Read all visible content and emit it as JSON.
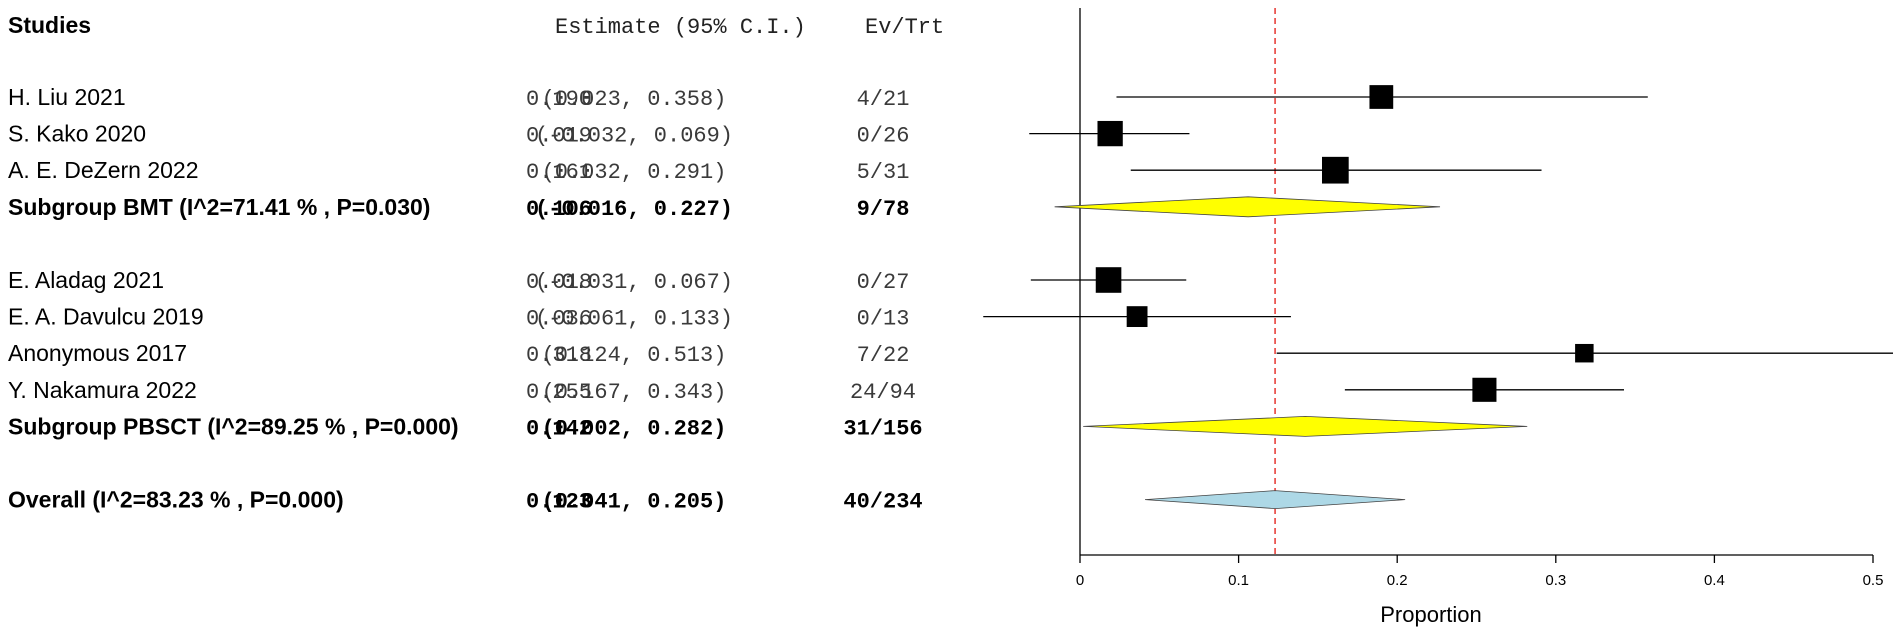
{
  "chart_data": {
    "type": "forest",
    "headers": {
      "studies": "Studies",
      "estimate": "Estimate (95% C.I.)",
      "events": "Ev/Trt"
    },
    "xlabel": "Proportion",
    "xlim": [
      0,
      0.5
    ],
    "xticks": [
      "0",
      "0.1",
      "0.2",
      "0.3",
      "0.4",
      "0.5"
    ],
    "xtick_values": [
      0,
      0.1,
      0.2,
      0.3,
      0.4,
      0.5
    ],
    "reference_line": 0.123,
    "colors": {
      "subgroup_diamond": "#ffff00",
      "overall_diamond": "#add8e6",
      "reference_line": "#e8413c"
    },
    "rows": [
      {
        "kind": "study",
        "label": "H. Liu 2021",
        "est_text": "0.190",
        "ci_text": "(0.023, 0.358)",
        "events": "4/21",
        "estimate": 0.19,
        "lower": 0.023,
        "upper": 0.358,
        "weight": 21
      },
      {
        "kind": "study",
        "label": "S. Kako 2020",
        "est_text": "0.019",
        "ci_text": "(-0.032, 0.069)",
        "events": "0/26",
        "estimate": 0.019,
        "lower": -0.032,
        "upper": 0.069,
        "weight": 26
      },
      {
        "kind": "study",
        "label": "A. E. DeZern 2022",
        "est_text": "0.161",
        "ci_text": "(0.032, 0.291)",
        "events": "5/31",
        "estimate": 0.161,
        "lower": 0.032,
        "upper": 0.291,
        "weight": 31
      },
      {
        "kind": "subgroup",
        "label": "Subgroup BMT (I^2=71.41 % , P=0.030)",
        "est_text": "0.106",
        "ci_text": "(-0.016, 0.227)",
        "events": "9/78",
        "estimate": 0.106,
        "lower": -0.016,
        "upper": 0.227
      },
      {
        "kind": "spacer"
      },
      {
        "kind": "study",
        "label": "E. Aladag 2021",
        "est_text": "0.018",
        "ci_text": "(-0.031, 0.067)",
        "events": "0/27",
        "estimate": 0.018,
        "lower": -0.031,
        "upper": 0.067,
        "weight": 27
      },
      {
        "kind": "study",
        "label": "E. A. Davulcu 2019",
        "est_text": "0.036",
        "ci_text": "(-0.061, 0.133)",
        "events": "0/13",
        "estimate": 0.036,
        "lower": -0.061,
        "upper": 0.133,
        "weight": 13
      },
      {
        "kind": "study",
        "label": "Anonymous 2017",
        "est_text": "0.318",
        "ci_text": "(0.124, 0.513)",
        "events": "7/22",
        "estimate": 0.318,
        "lower": 0.124,
        "upper": 0.513,
        "weight": 8
      },
      {
        "kind": "study",
        "label": "Y. Nakamura 2022",
        "est_text": "0.255",
        "ci_text": "(0.167, 0.343)",
        "events": "24/94",
        "estimate": 0.255,
        "lower": 0.167,
        "upper": 0.343,
        "weight": 22
      },
      {
        "kind": "subgroup",
        "label": "Subgroup PBSCT (I^2=89.25 % , P=0.000)",
        "est_text": "0.142",
        "ci_text": "(0.002, 0.282)",
        "events": "31/156",
        "estimate": 0.142,
        "lower": 0.002,
        "upper": 0.282
      },
      {
        "kind": "spacer"
      },
      {
        "kind": "overall",
        "label": "Overall (I^2=83.23 % , P=0.000)",
        "est_text": "0.123",
        "ci_text": "(0.041, 0.205)",
        "events": "40/234",
        "estimate": 0.123,
        "lower": 0.041,
        "upper": 0.205
      }
    ]
  }
}
